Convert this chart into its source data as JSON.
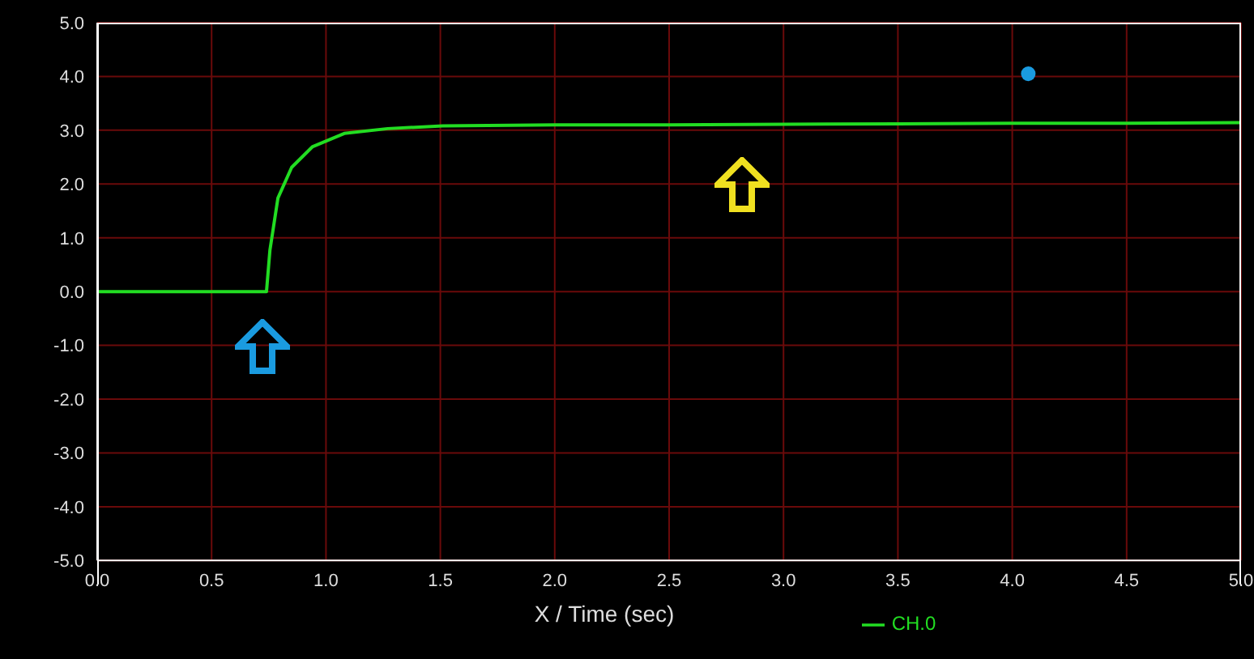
{
  "chart_data": {
    "type": "line",
    "xlabel": "X / Time (sec)",
    "series": [
      {
        "name": "CH.0",
        "color": "#22dd22",
        "marker": "none",
        "x": [
          0,
          0.5,
          0.74,
          0.755,
          0.79,
          0.85,
          0.94,
          1.08,
          1.27,
          1.51,
          2.0,
          2.5,
          3.0,
          3.5,
          4.0,
          4.5,
          5.0
        ],
        "values": [
          0,
          0,
          0,
          0.77,
          1.74,
          2.31,
          2.69,
          2.94,
          3.03,
          3.08,
          3.1,
          3.1,
          3.11,
          3.12,
          3.13,
          3.13,
          3.14
        ]
      },
      {
        "type": "scatter",
        "color": "#1a9be0",
        "marker": "circle",
        "x": [
          4.07
        ],
        "values": [
          4.05
        ]
      }
    ],
    "xlim": [
      0,
      5
    ],
    "ylim": [
      -5,
      5
    ],
    "xticks": [
      {
        "value": 0,
        "label": "0.0"
      },
      {
        "value": 0.5,
        "label": "0.5"
      },
      {
        "value": 1,
        "label": "1.0"
      },
      {
        "value": 1.5,
        "label": "1.5"
      },
      {
        "value": 2,
        "label": "2.0"
      },
      {
        "value": 2.5,
        "label": "2.5"
      },
      {
        "value": 3,
        "label": "3.0"
      },
      {
        "value": 3.5,
        "label": "3.5"
      },
      {
        "value": 4,
        "label": "4.0"
      },
      {
        "value": 4.5,
        "label": "4.5"
      },
      {
        "value": 5,
        "label": "5.0"
      }
    ],
    "yticks": [
      {
        "value": -5,
        "label": "-5.0"
      },
      {
        "value": -4,
        "label": "-4.0"
      },
      {
        "value": -3,
        "label": "-3.0"
      },
      {
        "value": -2,
        "label": "-2.0"
      },
      {
        "value": -1,
        "label": "-1.0"
      },
      {
        "value": 0,
        "label": "0.0"
      },
      {
        "value": 1,
        "label": "1.0"
      },
      {
        "value": 2,
        "label": "2.0"
      },
      {
        "value": 3,
        "label": "3.0"
      },
      {
        "value": 4,
        "label": "4.0"
      },
      {
        "value": 5,
        "label": "5.0"
      }
    ],
    "grid": true,
    "legend": "bottom"
  }
}
